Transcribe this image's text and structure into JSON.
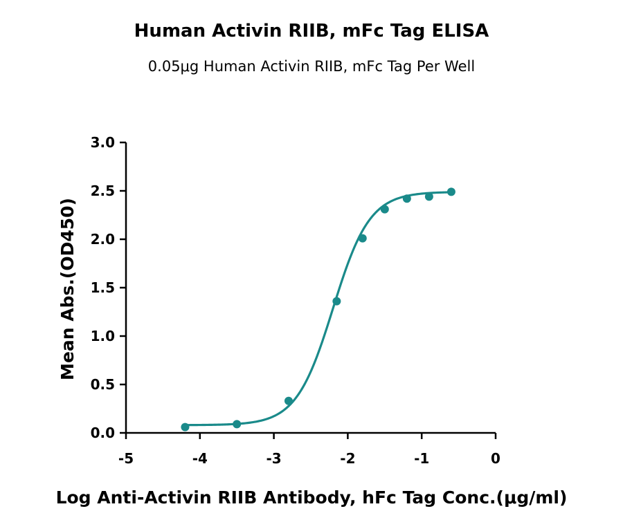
{
  "chart_data": {
    "type": "scatter",
    "title": "Human Activin RIIB, mFc Tag ELISA",
    "subtitle": "0.05μg Human Activin RIIB, mFc Tag Per Well",
    "xlabel": "Log Anti-Activin RIIB Antibody, hFc Tag Conc.(μg/ml)",
    "ylabel": "Mean Abs.(OD450)",
    "xlim": [
      -5,
      0
    ],
    "ylim": [
      0,
      3
    ],
    "x_ticks": [
      -5,
      -4,
      -3,
      -2,
      -1,
      0
    ],
    "y_ticks": [
      0.0,
      0.5,
      1.0,
      1.5,
      2.0,
      2.5,
      3.0
    ],
    "x_tick_labels": [
      "-5",
      "-4",
      "-3",
      "-2",
      "-1",
      "0"
    ],
    "y_tick_labels": [
      "0.0",
      "0.5",
      "1.0",
      "1.5",
      "2.0",
      "2.5",
      "3.0"
    ],
    "grid": false,
    "legend": "none",
    "color": "#1a8a8a",
    "series": [
      {
        "x": [
          -4.2,
          -3.5,
          -2.8,
          -2.15,
          -1.8,
          -1.5,
          -1.2,
          -0.9,
          -0.6
        ],
        "y": [
          0.06,
          0.09,
          0.33,
          1.36,
          2.01,
          2.31,
          2.42,
          2.44,
          2.49
        ]
      }
    ],
    "fit": {
      "model": "4PL",
      "bottom": 0.08,
      "top": 2.49,
      "log_ec50": -2.2,
      "hill_slope": 1.75,
      "x_range": [
        -4.2,
        -0.6
      ]
    }
  }
}
